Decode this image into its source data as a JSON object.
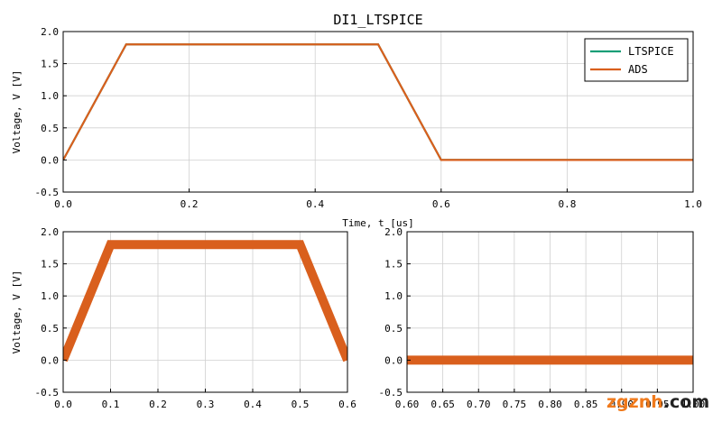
{
  "figure_title": "DI1_LTSPICE",
  "watermark": {
    "part1": "zgznh",
    "part2": ".com"
  },
  "colors": {
    "ltspice": "#1a9e77",
    "ads": "#d95f1d",
    "grid": "#d0d0d0",
    "watermark_orange": "#f07a1c",
    "watermark_dark": "#222222"
  },
  "chart_data": [
    {
      "type": "line",
      "title": "DI1_LTSPICE",
      "xlabel": "Time, t [us]",
      "ylabel": "Voltage, V [V]",
      "xlim": [
        0.0,
        1.0
      ],
      "ylim": [
        -0.5,
        2.0
      ],
      "xticks": [
        "0.0",
        "0.2",
        "0.4",
        "0.6",
        "0.8",
        "1.0"
      ],
      "yticks": [
        "-0.5",
        "0.0",
        "0.5",
        "1.0",
        "1.5",
        "2.0"
      ],
      "grid": true,
      "legend": "top-right",
      "series": [
        {
          "name": "LTSPICE",
          "x": [
            0.0,
            0.1,
            0.5,
            0.6,
            1.0
          ],
          "y": [
            0.0,
            1.8,
            1.8,
            0.0,
            0.0
          ]
        },
        {
          "name": "ADS",
          "x": [
            0.0,
            0.1,
            0.5,
            0.6,
            1.0
          ],
          "y": [
            0.0,
            1.8,
            1.8,
            0.0,
            0.0
          ]
        }
      ]
    },
    {
      "type": "line",
      "title": "",
      "xlabel": "",
      "ylabel": "Voltage, V [V]",
      "xlim": [
        0.0,
        0.6
      ],
      "ylim": [
        -0.5,
        2.0
      ],
      "xticks": [
        "0.0",
        "0.1",
        "0.2",
        "0.3",
        "0.4",
        "0.5",
        "0.6"
      ],
      "yticks": [
        "-0.5",
        "0.0",
        "0.5",
        "1.0",
        "1.5",
        "2.0"
      ],
      "grid": true,
      "series": [
        {
          "x": [
            0.0,
            0.1,
            0.5,
            0.6
          ],
          "y": [
            0.0,
            1.8,
            1.8,
            0.0
          ]
        }
      ]
    },
    {
      "type": "line",
      "title": "",
      "xlabel": "",
      "ylabel": "",
      "xlim": [
        0.6,
        1.0
      ],
      "ylim": [
        -0.5,
        2.0
      ],
      "xticks": [
        "0.60",
        "0.65",
        "0.70",
        "0.75",
        "0.80",
        "0.85",
        "0.90",
        "0.95",
        "1.00"
      ],
      "yticks": [
        "-0.5",
        "0.0",
        "0.5",
        "1.0",
        "1.5",
        "2.0"
      ],
      "grid": true,
      "series": [
        {
          "x": [
            0.6,
            1.0
          ],
          "y": [
            0.0,
            0.0
          ]
        }
      ]
    }
  ]
}
